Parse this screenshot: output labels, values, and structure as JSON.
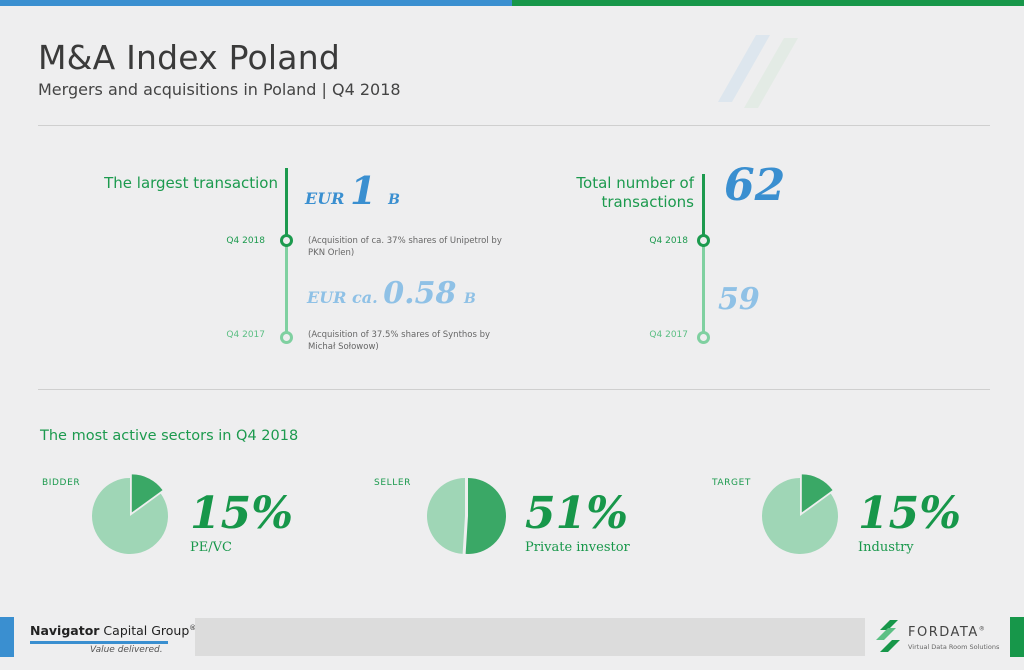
{
  "header": {
    "title": "M&A Index Poland",
    "subtitle": "Mergers and acquisitions in Poland | Q4 2018"
  },
  "largest": {
    "label": "The largest transaction",
    "current": {
      "quarter": "Q4 2018",
      "value": "EUR 1 B",
      "currency": "EUR",
      "amount": "1",
      "unit": "B",
      "note": "(Acquisition of ca. 37% shares of Unipetrol by PKN Orlen)"
    },
    "previous": {
      "quarter": "Q4 2017",
      "currency": "EUR ca.",
      "amount": "0.58",
      "unit": "B",
      "note": "(Acquisition of 37.5% shares of Synthos by Michał Sołowow)"
    }
  },
  "total": {
    "label_line1": "Total number of",
    "label_line2": "transactions",
    "current": {
      "quarter": "Q4 2018",
      "value": "62"
    },
    "previous": {
      "quarter": "Q4 2017",
      "value": "59"
    }
  },
  "sectors": {
    "title": "The most active sectors in Q4 2018",
    "items": [
      {
        "role": "BIDDER",
        "percent": "15%",
        "share": 15,
        "sector": "PE/VC"
      },
      {
        "role": "SELLER",
        "percent": "51%",
        "share": 51,
        "sector": "Private investor"
      },
      {
        "role": "TARGET",
        "percent": "15%",
        "share": 15,
        "sector": "Industry"
      }
    ]
  },
  "footer": {
    "ncg_bold": "Navigator",
    "ncg_rest": " Capital Group",
    "ncg_mark": "®",
    "ncg_tagline": "Value delivered.",
    "fordata_name": "FORDATA",
    "fordata_mark": "®",
    "fordata_tagline": "Virtual Data Room Solutions"
  },
  "colors": {
    "blue": "#3a8fd0",
    "green": "#17974a",
    "light_green": "#9fd6b6",
    "light_blue": "#8fc1e6"
  }
}
